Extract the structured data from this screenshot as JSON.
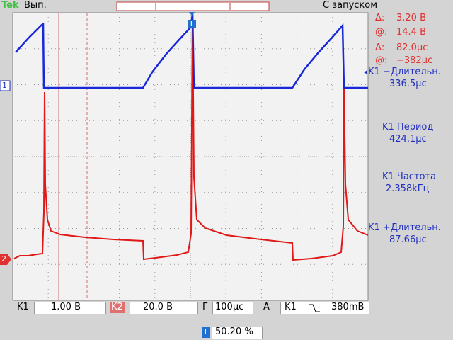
{
  "header": {
    "brand": "Tek",
    "status": "Вып.",
    "trigger_mode": "С запуском",
    "trigger_marker": "T"
  },
  "cursors": [
    {
      "label": "Δ:",
      "value": "3.20 В"
    },
    {
      "label": "@:",
      "value": "14.4 В"
    },
    {
      "label": "Δ:",
      "value": "82.0μс"
    },
    {
      "label": "@:",
      "value": "−382μс"
    }
  ],
  "measurements": [
    {
      "name": "K1 −Длительн.",
      "value": "336.5μс"
    },
    {
      "name": "K1 Период",
      "value": "424.1μс"
    },
    {
      "name": "K1 Частота",
      "value": "2.358kГц"
    },
    {
      "name": "K1 +Длительн.",
      "value": "87.66μс"
    }
  ],
  "channel_markers": [
    "1",
    "2"
  ],
  "footer": {
    "ch1_label": "K1",
    "ch1_scale": "1.00 В",
    "ch2_label": "K2",
    "ch2_scale": "20.0 В",
    "time_label": "Г",
    "time_scale": "100μс",
    "trigger_label": "A",
    "trigger_source": "K1",
    "trigger_level": "380mB",
    "trigger_pos_marker": "T",
    "trigger_pos": "50.20 %"
  }
}
